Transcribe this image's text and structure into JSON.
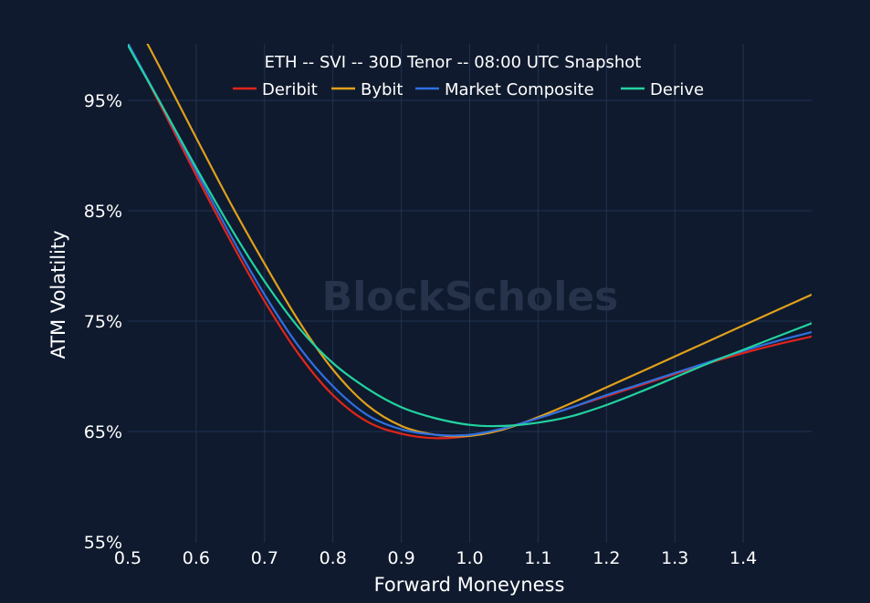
{
  "watermark": "BlockScholes",
  "chart_data": {
    "type": "line",
    "title": "ETH -- SVI -- 30D Tenor -- 08:00 UTC Snapshot",
    "xlabel": "Forward Moneyness",
    "ylabel": "ATM Volatility",
    "xlim": [
      0.5,
      1.5
    ],
    "ylim": [
      55,
      95
    ],
    "x_ticks": [
      0.5,
      0.6,
      0.7,
      0.8,
      0.9,
      1.0,
      1.1,
      1.2,
      1.3,
      1.4
    ],
    "x_tick_labels": [
      "0.5",
      "0.6",
      "0.7",
      "0.8",
      "0.9",
      "1.0",
      "1.1",
      "1.2",
      "1.3",
      "1.4"
    ],
    "y_ticks": [
      55,
      65,
      75,
      85,
      95
    ],
    "y_tick_labels": [
      "55%",
      "65%",
      "75%",
      "85%",
      "95%"
    ],
    "grid": true,
    "legend_position": "top",
    "x": [
      0.5,
      0.55,
      0.6,
      0.65,
      0.7,
      0.75,
      0.8,
      0.85,
      0.9,
      0.95,
      1.0,
      1.05,
      1.1,
      1.15,
      1.2,
      1.25,
      1.3,
      1.35,
      1.4,
      1.45,
      1.5
    ],
    "series": [
      {
        "name": "Deribit",
        "color": "#e0251b",
        "values": [
          100.2,
          94.3,
          88.2,
          82.3,
          76.8,
          72.0,
          68.3,
          65.9,
          64.8,
          64.4,
          64.6,
          65.3,
          66.2,
          67.2,
          68.2,
          69.2,
          70.2,
          71.2,
          72.1,
          72.9,
          73.6
        ]
      },
      {
        "name": "Bybit",
        "color": "#e0a01b",
        "values": [
          103.5,
          97.6,
          91.6,
          85.7,
          80.2,
          75.0,
          70.6,
          67.4,
          65.5,
          64.7,
          64.6,
          65.2,
          66.3,
          67.6,
          69.0,
          70.4,
          71.8,
          73.2,
          74.6,
          76.0,
          77.4
        ]
      },
      {
        "name": "Market Composite",
        "color": "#2f6fe0",
        "values": [
          100.2,
          94.5,
          88.6,
          82.8,
          77.4,
          72.7,
          69.1,
          66.5,
          65.2,
          64.7,
          64.7,
          65.3,
          66.2,
          67.2,
          68.3,
          69.3,
          70.3,
          71.3,
          72.3,
          73.2,
          74.0
        ]
      },
      {
        "name": "Derive",
        "color": "#22d3a0",
        "values": [
          100.0,
          94.5,
          88.9,
          83.5,
          78.6,
          74.4,
          71.2,
          68.9,
          67.2,
          66.2,
          65.6,
          65.5,
          65.8,
          66.4,
          67.4,
          68.6,
          69.9,
          71.2,
          72.4,
          73.6,
          74.8
        ]
      }
    ]
  }
}
